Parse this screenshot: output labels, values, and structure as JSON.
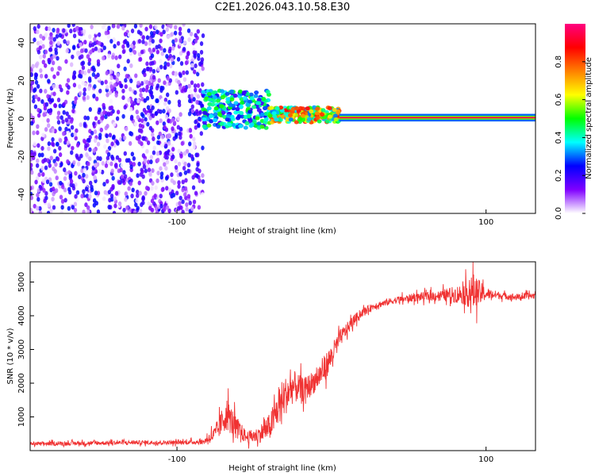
{
  "title": "C2E1.2026.043.10.58.E30",
  "colors": {
    "snr_line": "#f03232",
    "axis": "#000000",
    "background": "#ffffff"
  },
  "chart_data": [
    {
      "type": "heatmap",
      "name": "spectrogram",
      "xlabel": "Height of straight line (km)",
      "ylabel": "Frequency (Hz)",
      "xlim": [
        -195,
        132
      ],
      "ylim": [
        -50,
        50
      ],
      "xticks": [
        -100,
        100
      ],
      "yticks": [
        -40,
        -20,
        0,
        20,
        40
      ],
      "colorbar": {
        "label": "Normalized spectral amplitude",
        "range": [
          0,
          1
        ],
        "ticks": [
          "0.0",
          "0.2",
          "0.4",
          "0.6",
          "0.8"
        ],
        "stops": [
          "#ffffff",
          "#8000ff",
          "#0000ff",
          "#00ffff",
          "#00ff00",
          "#ffff00",
          "#ff8000",
          "#ff0000",
          "#ff0080"
        ]
      },
      "regions": [
        {
          "desc": "broadband noise",
          "x": [
            -195,
            -83
          ],
          "freq": [
            -50,
            50
          ],
          "amplitude": 0.12
        },
        {
          "desc": "noisy carrier",
          "x": [
            -83,
            -40
          ],
          "freq": [
            -5,
            15
          ],
          "amplitude": 0.35
        },
        {
          "desc": "converging carrier",
          "x": [
            -40,
            5
          ],
          "freq": [
            -2,
            6
          ],
          "amplitude": 0.6
        },
        {
          "desc": "stable carrier",
          "x": [
            5,
            132
          ],
          "freq": [
            0,
            1
          ],
          "amplitude": 0.95
        }
      ]
    },
    {
      "type": "line",
      "name": "snr",
      "xlabel": "Height of straight line (km)",
      "ylabel": "SNR (10 * v/v)",
      "xlim": [
        -195,
        132
      ],
      "ylim": [
        0,
        5600
      ],
      "xticks": [
        -100,
        100
      ],
      "yticks": [
        1000,
        2000,
        3000,
        4000,
        5000
      ],
      "x": [
        -195,
        -160,
        -130,
        -100,
        -83,
        -75,
        -68,
        -62,
        -55,
        -48,
        -40,
        -32,
        -25,
        -18,
        -10,
        -5,
        0,
        5,
        10,
        15,
        20,
        28,
        40,
        55,
        70,
        85,
        92,
        100,
        110,
        120,
        132
      ],
      "y": [
        200,
        220,
        240,
        240,
        260,
        500,
        1100,
        700,
        400,
        450,
        700,
        1500,
        1900,
        1800,
        2100,
        2400,
        2800,
        3300,
        3600,
        3900,
        4100,
        4300,
        4450,
        4550,
        4600,
        4650,
        4700,
        4650,
        4600,
        4550,
        4600
      ],
      "spread": [
        120,
        120,
        120,
        120,
        150,
        500,
        1000,
        700,
        350,
        450,
        800,
        1200,
        1000,
        700,
        700,
        800,
        700,
        500,
        400,
        300,
        250,
        200,
        200,
        250,
        300,
        600,
        1100,
        350,
        200,
        200,
        200
      ]
    }
  ]
}
